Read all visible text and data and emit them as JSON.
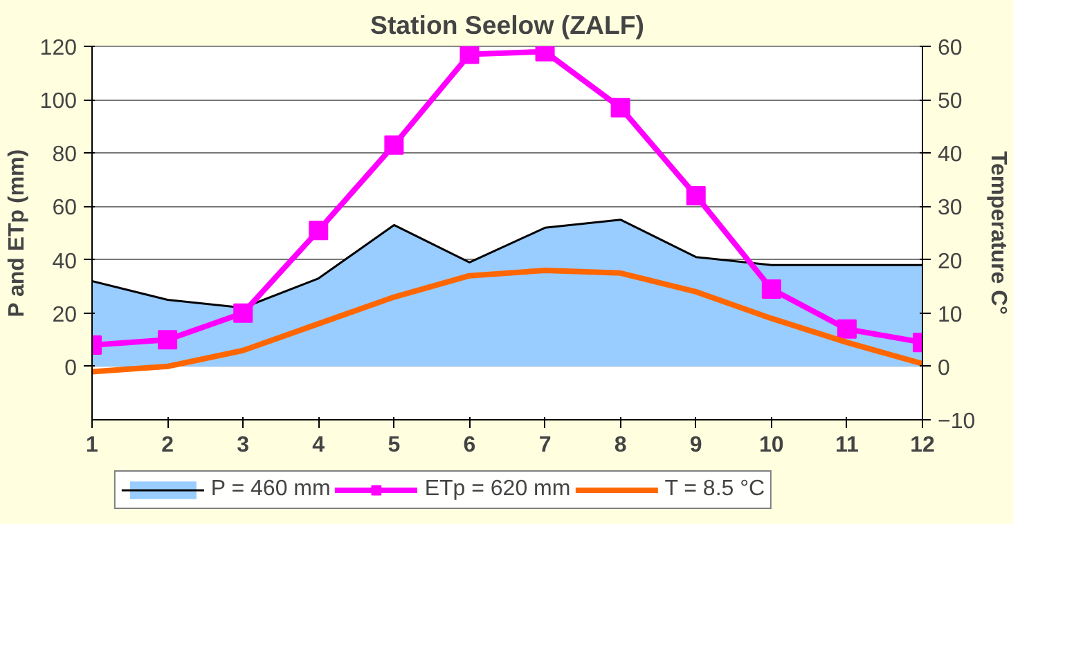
{
  "chart_data": {
    "type": "line",
    "title": "Station Seelow (ZALF)",
    "ylabel": "P and ETp (mm)",
    "y2label": "Temperature C°",
    "x": [
      1,
      2,
      3,
      4,
      5,
      6,
      7,
      8,
      9,
      10,
      11,
      12
    ],
    "xlim": [
      1,
      12
    ],
    "xticks": [
      1,
      2,
      3,
      4,
      5,
      6,
      7,
      8,
      9,
      10,
      11,
      12
    ],
    "ylim": [
      -20,
      120
    ],
    "yticks": [
      0,
      20,
      40,
      60,
      80,
      100,
      120
    ],
    "y2lim": [
      -10,
      60
    ],
    "y2ticks": [
      -10,
      0,
      10,
      20,
      30,
      40,
      50,
      60
    ],
    "grid": "y",
    "legend": "bottom",
    "series": [
      {
        "name": "P = 460 mm",
        "type": "area",
        "color": "#99ccff",
        "values": [
          32,
          25,
          22,
          33,
          53,
          39,
          52,
          55,
          41,
          38,
          38,
          38
        ]
      },
      {
        "name": "ETp = 620 mm",
        "type": "line",
        "color": "#ff00ff",
        "marker": "square",
        "values": [
          8,
          10,
          20,
          51,
          83,
          117,
          118,
          97,
          64,
          29,
          14,
          9
        ]
      },
      {
        "name": "T = 8.5 °C",
        "color": "#ff6600",
        "axis": "y2",
        "values": [
          -1,
          0,
          3,
          8,
          13,
          17,
          18,
          17.5,
          14,
          9,
          4.5,
          0.5
        ]
      }
    ]
  }
}
